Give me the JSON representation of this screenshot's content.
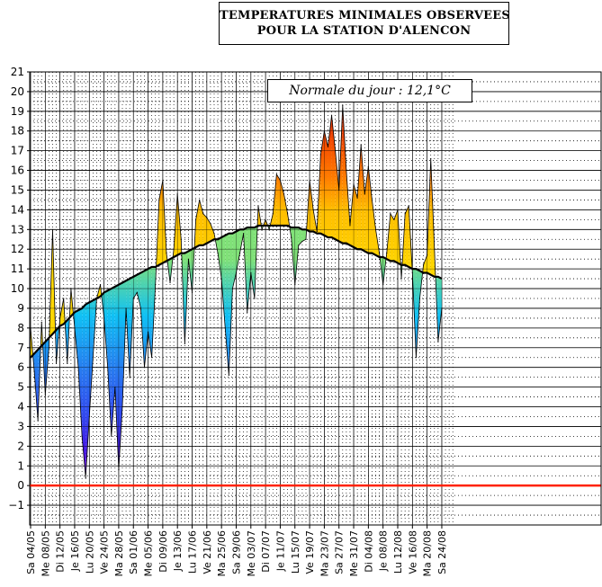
{
  "title": {
    "line1": "TEMPERATURES MINIMALES OBSERVEES",
    "line2": "POUR LA STATION D'ALENCON"
  },
  "normal_label": "Normale du jour : 12,1°C",
  "colors": {
    "freeze_line": "#ff2200",
    "normal_line": "#000000"
  },
  "chart_data": {
    "type": "area",
    "title": "TEMPERATURES MINIMALES OBSERVEES POUR LA STATION D'ALENCON",
    "xlabel": "",
    "ylabel": "",
    "ylim": [
      -2,
      21
    ],
    "yticks": [
      -1,
      0,
      1,
      2,
      3,
      4,
      5,
      6,
      7,
      8,
      9,
      10,
      11,
      12,
      13,
      14,
      15,
      16,
      17,
      18,
      19,
      20,
      21
    ],
    "grid": true,
    "start_date": "04/05",
    "xtick_labels": [
      "Sa 04/05",
      "Me 08/05",
      "Di 12/05",
      "Je 16/05",
      "Lu 20/05",
      "Ve 24/05",
      "Ma 28/05",
      "Sa 01/06",
      "Me 05/06",
      "Di 09/06",
      "Je 13/06",
      "Lu 17/06",
      "Ve 21/06",
      "Ma 25/06",
      "Sa 29/06",
      "Me 03/07",
      "Di 07/07",
      "Je 11/07",
      "Lu 15/07",
      "Ve 19/07",
      "Ma 23/07",
      "Sa 27/07",
      "Me 31/07",
      "Di 04/08",
      "Je 08/08",
      "Lu 12/08",
      "Ve 16/08",
      "Ma 20/08",
      "Sa 24/08"
    ],
    "reference_line": {
      "value": 0,
      "color": "#ff2200"
    },
    "series": [
      {
        "name": "Temperature minimale observee",
        "values": [
          8.0,
          5.8,
          3.3,
          8.3,
          4.6,
          7.0,
          13.0,
          6.2,
          8.5,
          9.5,
          6.2,
          10.0,
          8.0,
          6.0,
          2.5,
          0.4,
          3.5,
          6.5,
          9.5,
          10.2,
          8.5,
          6.0,
          2.5,
          5.0,
          0.8,
          4.0,
          9.0,
          5.5,
          9.5,
          9.8,
          9.0,
          6.0,
          7.8,
          6.5,
          10.2,
          14.5,
          15.5,
          11.8,
          10.3,
          12.0,
          14.8,
          12.5,
          7.2,
          11.5,
          9.8,
          13.5,
          14.5,
          13.8,
          13.6,
          13.3,
          12.8,
          11.8,
          10.5,
          8.0,
          5.6,
          10.0,
          10.8,
          11.8,
          12.8,
          8.8,
          10.8,
          9.5,
          14.2,
          13.0,
          13.5,
          13.0,
          13.8,
          15.8,
          15.5,
          14.8,
          13.8,
          12.6,
          10.2,
          12.2,
          12.4,
          12.5,
          15.5,
          14.0,
          12.9,
          16.8,
          18.0,
          17.2,
          18.8,
          17.0,
          15.0,
          19.3,
          16.0,
          13.2,
          15.3,
          14.6,
          17.3,
          14.8,
          16.2,
          14.5,
          13.0,
          11.8,
          10.2,
          11.8,
          13.8,
          13.5,
          14.0,
          10.5,
          13.8,
          14.2,
          10.8,
          6.5,
          9.5,
          11.2,
          11.7,
          16.6,
          12.0,
          7.3,
          9.0
        ]
      },
      {
        "name": "Normale",
        "values": [
          6.5,
          6.7,
          6.9,
          7.1,
          7.3,
          7.5,
          7.7,
          7.9,
          8.1,
          8.2,
          8.4,
          8.6,
          8.8,
          8.9,
          9.0,
          9.2,
          9.3,
          9.4,
          9.5,
          9.6,
          9.8,
          9.9,
          10.0,
          10.1,
          10.2,
          10.3,
          10.4,
          10.5,
          10.6,
          10.7,
          10.8,
          10.9,
          11.0,
          11.1,
          11.1,
          11.2,
          11.3,
          11.4,
          11.5,
          11.6,
          11.7,
          11.8,
          11.8,
          11.9,
          12.0,
          12.1,
          12.2,
          12.2,
          12.3,
          12.4,
          12.5,
          12.5,
          12.6,
          12.7,
          12.8,
          12.8,
          12.9,
          13.0,
          13.0,
          13.1,
          13.1,
          13.1,
          13.2,
          13.2,
          13.2,
          13.2,
          13.2,
          13.2,
          13.2,
          13.2,
          13.2,
          13.1,
          13.1,
          13.1,
          13.0,
          13.0,
          12.9,
          12.9,
          12.8,
          12.8,
          12.7,
          12.6,
          12.6,
          12.5,
          12.4,
          12.3,
          12.3,
          12.2,
          12.1,
          12.0,
          12.0,
          11.9,
          11.8,
          11.8,
          11.7,
          11.6,
          11.6,
          11.5,
          11.4,
          11.4,
          11.3,
          11.2,
          11.2,
          11.1,
          11.0,
          11.0,
          10.9,
          10.8,
          10.8,
          10.7,
          10.6,
          10.6,
          10.5
        ]
      }
    ]
  }
}
